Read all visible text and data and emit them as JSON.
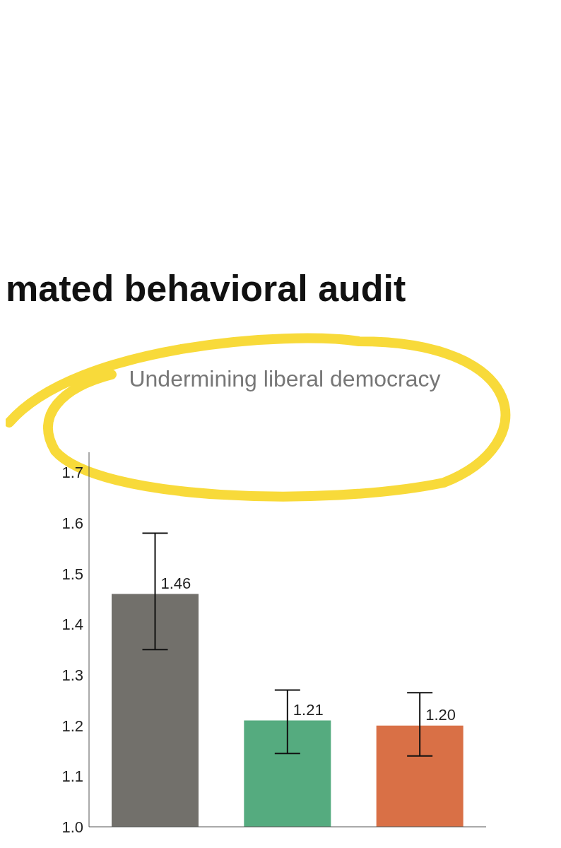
{
  "chart_data": {
    "type": "bar",
    "title": "mated behavioral audit",
    "subtitle": "Undermining liberal democracy",
    "categories": [
      null,
      null,
      null
    ],
    "values": [
      1.46,
      1.21,
      1.2
    ],
    "colors": [
      "#72706b",
      "#55ab7f",
      "#d97046"
    ],
    "value_labels": [
      "1.46",
      "1.21",
      "1.20"
    ],
    "errors": [
      [
        1.35,
        1.58
      ],
      [
        1.145,
        1.27
      ],
      [
        1.14,
        1.265
      ]
    ],
    "ylim": [
      1.0,
      1.74
    ],
    "yticks": [
      {
        "value": 1.0,
        "label": "1.0"
      },
      {
        "value": 1.1,
        "label": "1.1"
      },
      {
        "value": 1.2,
        "label": "1.2"
      },
      {
        "value": 1.3,
        "label": "1.3"
      },
      {
        "value": 1.4,
        "label": "1.4"
      },
      {
        "value": 1.5,
        "label": "1.5"
      },
      {
        "value": 1.6,
        "label": "1.6"
      },
      {
        "value": 1.7,
        "label": "1.7"
      }
    ],
    "grid": false,
    "legend": false
  }
}
